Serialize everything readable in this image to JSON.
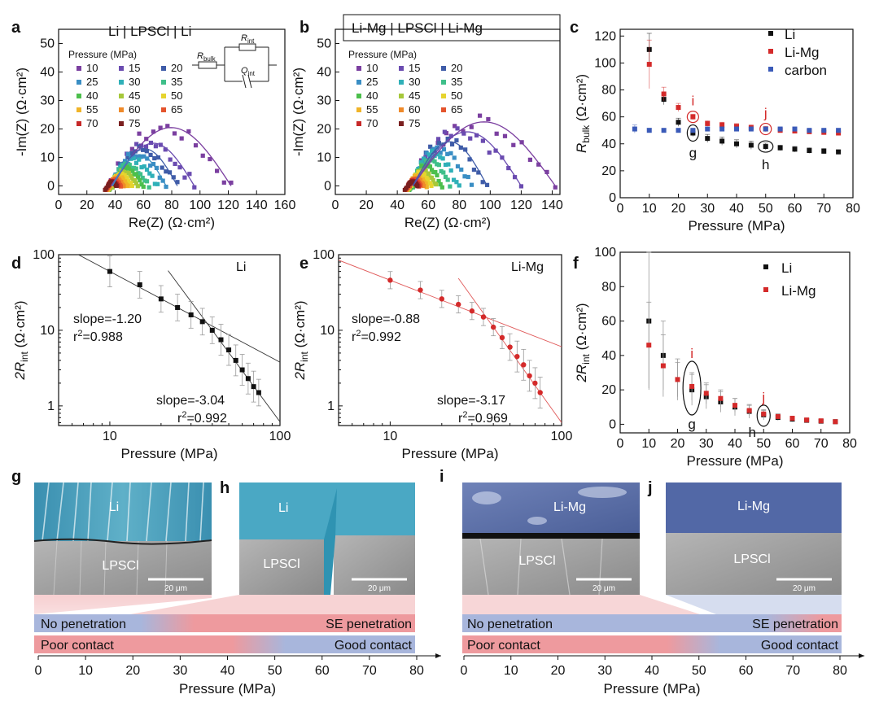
{
  "colors": {
    "li": "#111111",
    "limg": "#d42a2a",
    "carbon": "#3a5ab8",
    "fit_d": "#333333",
    "fit_e": "#e05a5a",
    "err": "#9a9a9a",
    "red_band": "#ee9a9e",
    "blue_band": "#a8b6dc",
    "sem_li": "#3f9fba",
    "sem_limg": "#5268a6",
    "sem_lpscl": "#9a9a9a"
  },
  "axis_titles": {
    "pressure": "Pressure (MPa)",
    "re_z": "Re(Z) (Ω·cm²)",
    "im_z": "-Im(Z) (Ω·cm²)",
    "r_bulk": "R",
    "r_bulk_sub": "bulk",
    "r_int_prefix": "2R",
    "r_int_sub": "int",
    "ohm_unit": " (Ω·cm²)"
  },
  "pressure_legend_title": "Pressure (MPa)",
  "pressure_legend": [
    {
      "label": "10",
      "color": "#7b3fa0"
    },
    {
      "label": "15",
      "color": "#6a4bb0"
    },
    {
      "label": "20",
      "color": "#3f5ca8"
    },
    {
      "label": "25",
      "color": "#3a8ec4"
    },
    {
      "label": "30",
      "color": "#2fb0b8"
    },
    {
      "label": "35",
      "color": "#3fbf8a"
    },
    {
      "label": "40",
      "color": "#4cbf4c"
    },
    {
      "label": "45",
      "color": "#a6c83a"
    },
    {
      "label": "50",
      "color": "#e6d42e"
    },
    {
      "label": "55",
      "color": "#f0b428"
    },
    {
      "label": "60",
      "color": "#ef8a2a"
    },
    {
      "label": "65",
      "color": "#e4532c"
    },
    {
      "label": "70",
      "color": "#c62828"
    },
    {
      "label": "75",
      "color": "#7a1f1f"
    }
  ],
  "circuit": {
    "r_bulk_label": "R",
    "r_bulk_sub": "bulk",
    "r_int_label": "R",
    "r_int_sub": "int",
    "q_int_label": "Q",
    "q_int_sub": "int"
  },
  "panels": {
    "a": {
      "letter": "a",
      "title": "Li | LPSCl | Li"
    },
    "b": {
      "letter": "b",
      "title": "Li-Mg | LPSCl | Li-Mg"
    },
    "c": {
      "letter": "c"
    },
    "d": {
      "letter": "d",
      "label": "Li",
      "annotations": [
        {
          "line1": "slope=-1.20",
          "line2_prefix": "r",
          "line2_sup": "2",
          "line2_rest": "=0.988"
        },
        {
          "line1": "slope=-3.04",
          "line2_prefix": "r",
          "line2_sup": "2",
          "line2_rest": "=0.992"
        }
      ]
    },
    "e": {
      "letter": "e",
      "label": "Li-Mg",
      "annotations": [
        {
          "line1": "slope=-0.88",
          "line2_prefix": "r",
          "line2_sup": "2",
          "line2_rest": "=0.992"
        },
        {
          "line1": "slope=-3.17",
          "line2_prefix": "r",
          "line2_sup": "2",
          "line2_rest": "=0.969"
        }
      ]
    },
    "f": {
      "letter": "f"
    },
    "g": {
      "letter": "g",
      "top_label": "Li",
      "bottom_label": "LPSCl",
      "scale": "20 μm"
    },
    "h": {
      "letter": "h",
      "top_label": "Li",
      "bottom_label": "LPSCl",
      "scale": "20 μm"
    },
    "i": {
      "letter": "i",
      "top_label": "Li-Mg",
      "bottom_label": "LPSCl",
      "scale": "20 μm"
    },
    "j": {
      "letter": "j",
      "top_label": "Li-Mg",
      "bottom_label": "LPSCl",
      "scale": "20 μm"
    }
  },
  "marker_labels": {
    "i": "i",
    "j": "j",
    "g": "g",
    "h": "h"
  },
  "bars": {
    "left": {
      "row1_left": "No penetration",
      "row1_right": "SE penetration",
      "row2_left": "Poor contact",
      "row2_right": "Good contact"
    },
    "right": {
      "row1_left": "No penetration",
      "row1_right": "SE penetration",
      "row2_left": "Poor contact",
      "row2_right": "Good contact"
    }
  },
  "chart_data": [
    {
      "id": "a",
      "type": "scatter",
      "title": "Li | LPSCl | Li",
      "xlabel": "Re(Z) (Ω·cm²)",
      "ylabel": "-Im(Z) (Ω·cm²)",
      "xlim": [
        0,
        160
      ],
      "ylim": [
        -3,
        55
      ],
      "xticks": [
        0,
        20,
        40,
        60,
        80,
        100,
        120,
        140,
        160
      ],
      "yticks": [
        0,
        10,
        20,
        30,
        40,
        50
      ],
      "arcs": [
        {
          "pressure": 10,
          "start": 37,
          "end": 122,
          "peak": 20.5,
          "color": "#7b3fa0"
        },
        {
          "pressure": 15,
          "start": 38,
          "end": 96,
          "peak": 15.0,
          "color": "#6a4bb0"
        },
        {
          "pressure": 20,
          "start": 38,
          "end": 84,
          "peak": 13.0,
          "color": "#3f5ca8"
        },
        {
          "pressure": 25,
          "start": 38,
          "end": 76,
          "peak": 11.0,
          "color": "#3a8ec4"
        },
        {
          "pressure": 30,
          "start": 38,
          "end": 70,
          "peak": 9.0,
          "color": "#2fb0b8"
        },
        {
          "pressure": 35,
          "start": 38,
          "end": 64,
          "peak": 7.5,
          "color": "#3fbf8a"
        },
        {
          "pressure": 40,
          "start": 38,
          "end": 60,
          "peak": 6.0,
          "color": "#4cbf4c"
        },
        {
          "pressure": 45,
          "start": 38,
          "end": 56,
          "peak": 5.0,
          "color": "#a6c83a"
        },
        {
          "pressure": 50,
          "start": 37,
          "end": 52,
          "peak": 4.0,
          "color": "#e6d42e"
        },
        {
          "pressure": 55,
          "start": 37,
          "end": 49,
          "peak": 3.2,
          "color": "#f0b428"
        },
        {
          "pressure": 60,
          "start": 36,
          "end": 46,
          "peak": 2.6,
          "color": "#ef8a2a"
        },
        {
          "pressure": 65,
          "start": 36,
          "end": 44,
          "peak": 2.1,
          "color": "#e4532c"
        },
        {
          "pressure": 70,
          "start": 35,
          "end": 42,
          "peak": 1.7,
          "color": "#c62828"
        },
        {
          "pressure": 75,
          "start": 35,
          "end": 41,
          "peak": 1.4,
          "color": "#7a1f1f"
        }
      ],
      "fit_curves": [
        10,
        15,
        20,
        25
      ]
    },
    {
      "id": "b",
      "type": "scatter",
      "title": "Li-Mg | LPSCl | Li-Mg",
      "xlabel": "Re(Z) (Ω·cm²)",
      "ylabel": "-Im(Z) (Ω·cm²)",
      "xlim": [
        0,
        145
      ],
      "ylim": [
        -3,
        55
      ],
      "xticks": [
        0,
        20,
        40,
        60,
        80,
        100,
        120,
        140
      ],
      "yticks": [
        0,
        10,
        20,
        30,
        40,
        50
      ],
      "arcs": [
        {
          "pressure": 10,
          "start": 50,
          "end": 142,
          "peak": 22.5,
          "color": "#7b3fa0"
        },
        {
          "pressure": 15,
          "start": 50,
          "end": 120,
          "peak": 19.0,
          "color": "#6a4bb0"
        },
        {
          "pressure": 20,
          "start": 50,
          "end": 98,
          "peak": 15.5,
          "color": "#3f5ca8"
        },
        {
          "pressure": 25,
          "start": 50,
          "end": 88,
          "peak": 13.0,
          "color": "#3a8ec4"
        },
        {
          "pressure": 30,
          "start": 50,
          "end": 80,
          "peak": 11.0,
          "color": "#2fb0b8"
        },
        {
          "pressure": 35,
          "start": 50,
          "end": 74,
          "peak": 9.0,
          "color": "#3fbf8a"
        },
        {
          "pressure": 40,
          "start": 50,
          "end": 69,
          "peak": 7.0,
          "color": "#4cbf4c"
        },
        {
          "pressure": 45,
          "start": 49,
          "end": 65,
          "peak": 5.5,
          "color": "#a6c83a"
        },
        {
          "pressure": 50,
          "start": 49,
          "end": 62,
          "peak": 4.5,
          "color": "#e6d42e"
        },
        {
          "pressure": 55,
          "start": 48,
          "end": 59,
          "peak": 3.5,
          "color": "#f0b428"
        },
        {
          "pressure": 60,
          "start": 48,
          "end": 57,
          "peak": 2.8,
          "color": "#ef8a2a"
        },
        {
          "pressure": 65,
          "start": 48,
          "end": 55,
          "peak": 2.2,
          "color": "#e4532c"
        },
        {
          "pressure": 70,
          "start": 47,
          "end": 54,
          "peak": 1.8,
          "color": "#c62828"
        },
        {
          "pressure": 75,
          "start": 47,
          "end": 53,
          "peak": 1.5,
          "color": "#7a1f1f"
        }
      ],
      "fit_curves": [
        10,
        15,
        20
      ]
    },
    {
      "id": "c",
      "type": "scatter",
      "xlabel": "Pressure (MPa)",
      "ylabel": "R_bulk (Ω·cm²)",
      "xlim": [
        0,
        80
      ],
      "ylim": [
        0,
        125
      ],
      "xticks": [
        0,
        10,
        20,
        30,
        40,
        50,
        60,
        70,
        80
      ],
      "yticks": [
        0,
        20,
        40,
        60,
        80,
        100,
        120
      ],
      "series": [
        {
          "name": "Li",
          "color": "#111111",
          "x": [
            10,
            15,
            20,
            25,
            30,
            35,
            40,
            45,
            50,
            55,
            60,
            65,
            70,
            75
          ],
          "y": [
            110,
            73,
            56,
            48,
            44,
            42,
            40,
            39,
            38,
            37,
            36,
            35,
            34.5,
            34
          ],
          "err": [
            12,
            4,
            3,
            2.5,
            3,
            3,
            3,
            3,
            2.5,
            2,
            2,
            2,
            2,
            1.5
          ]
        },
        {
          "name": "Li-Mg",
          "color": "#d42a2a",
          "x": [
            10,
            15,
            20,
            25,
            30,
            35,
            40,
            45,
            50,
            55,
            60,
            65,
            70,
            75
          ],
          "y": [
            99,
            77,
            67,
            60,
            55,
            54,
            53,
            52,
            51,
            50,
            49.5,
            49,
            48.5,
            48
          ],
          "err": [
            18,
            5,
            3,
            2,
            2,
            2,
            2,
            2,
            2,
            1.5,
            1.5,
            1.5,
            1.5,
            1.5
          ]
        },
        {
          "name": "carbon",
          "color": "#3a5ab8",
          "x": [
            5,
            10,
            15,
            20,
            25,
            30,
            35,
            40,
            45,
            50,
            55,
            60,
            65,
            70,
            75
          ],
          "y": [
            51,
            50,
            50,
            50,
            50,
            51,
            51,
            51,
            51,
            51,
            51,
            51,
            50,
            50,
            50
          ],
          "err": [
            3,
            1.5,
            1,
            1,
            1,
            1,
            1,
            1,
            1,
            1,
            1,
            1,
            1,
            1,
            1
          ]
        }
      ],
      "legend": "top-right",
      "markers": {
        "i": [
          25,
          60
        ],
        "j": [
          50,
          51
        ],
        "g": [
          25,
          48
        ],
        "h": [
          50,
          38
        ]
      }
    },
    {
      "id": "d",
      "type": "scatter",
      "scale": "log-log",
      "xlabel": "Pressure (MPa)",
      "ylabel": "2R_int (Ω·cm²)",
      "xlim": [
        5,
        100
      ],
      "ylim": [
        0.55,
        100
      ],
      "xticks": [
        10,
        100
      ],
      "yticks": [
        1,
        10,
        100
      ],
      "series": [
        {
          "name": "Li",
          "color": "#111111",
          "x": [
            10,
            15,
            20,
            25,
            30,
            35,
            40,
            45,
            50,
            55,
            60,
            65,
            70,
            75
          ],
          "y": [
            60,
            40,
            26,
            20,
            16,
            13,
            10,
            7.5,
            5.5,
            4,
            3,
            2.3,
            1.8,
            1.5
          ],
          "err_factor": [
            1.6,
            1.5,
            1.5,
            1.5,
            1.5,
            1.5,
            1.5,
            1.6,
            1.6,
            1.6,
            1.6,
            1.6,
            1.6,
            1.5
          ]
        }
      ],
      "fits": [
        {
          "slope": -1.2,
          "r2": 0.988,
          "x_range": [
            5,
            100
          ],
          "anchor": [
            10,
            60
          ]
        },
        {
          "slope": -3.04,
          "r2": 0.992,
          "x_range": [
            22,
            100
          ],
          "anchor": [
            40,
            10
          ]
        }
      ]
    },
    {
      "id": "e",
      "type": "scatter",
      "scale": "log-log",
      "xlabel": "Pressure (MPa)",
      "ylabel": "2R_int (Ω·cm²)",
      "xlim": [
        5,
        100
      ],
      "ylim": [
        0.55,
        100
      ],
      "xticks": [
        10,
        100
      ],
      "yticks": [
        1,
        10,
        100
      ],
      "series": [
        {
          "name": "Li-Mg",
          "color": "#d42a2a",
          "x": [
            10,
            15,
            20,
            25,
            30,
            35,
            40,
            45,
            50,
            55,
            60,
            65,
            70,
            75
          ],
          "y": [
            46,
            34,
            26,
            22,
            18,
            15,
            11,
            8,
            6,
            4.5,
            3.5,
            2.5,
            2,
            1.5
          ],
          "err_factor": [
            1.3,
            1.3,
            1.3,
            1.3,
            1.3,
            1.3,
            1.3,
            1.4,
            1.5,
            1.6,
            1.6,
            1.6,
            1.6,
            1.6
          ]
        }
      ],
      "fits": [
        {
          "slope": -0.88,
          "r2": 0.992,
          "x_range": [
            5,
            100
          ],
          "anchor": [
            10,
            46
          ]
        },
        {
          "slope": -3.17,
          "r2": 0.969,
          "x_range": [
            25,
            100
          ],
          "anchor": [
            40,
            11
          ]
        }
      ]
    },
    {
      "id": "f",
      "type": "scatter",
      "xlabel": "Pressure (MPa)",
      "ylabel": "2R_int (Ω·cm²)",
      "xlim": [
        0,
        80
      ],
      "ylim": [
        -5,
        100
      ],
      "xticks": [
        0,
        10,
        20,
        30,
        40,
        50,
        60,
        70,
        80
      ],
      "yticks": [
        0,
        20,
        40,
        60,
        80,
        100
      ],
      "series": [
        {
          "name": "Li",
          "color": "#111111",
          "x": [
            10,
            15,
            20,
            25,
            30,
            35,
            40,
            45,
            50,
            55,
            60,
            65,
            70,
            75
          ],
          "y": [
            60,
            40,
            26,
            20,
            16,
            13,
            10,
            7.5,
            5.5,
            4,
            3,
            2.3,
            1.8,
            1.5
          ],
          "err": [
            40,
            20,
            12,
            9,
            7,
            6,
            5,
            4,
            3,
            2,
            1.5,
            1,
            1,
            1
          ]
        },
        {
          "name": "Li-Mg",
          "color": "#d42a2a",
          "x": [
            10,
            15,
            20,
            25,
            30,
            35,
            40,
            45,
            50,
            55,
            60,
            65,
            70,
            75
          ],
          "y": [
            46,
            34,
            26,
            22,
            18,
            15,
            11,
            8,
            6,
            4.5,
            3.5,
            2.5,
            2,
            1.5
          ],
          "err": [
            25,
            18,
            10,
            8,
            6,
            5,
            4,
            3,
            2,
            1.5,
            1,
            1,
            1,
            0.8
          ]
        }
      ],
      "legend": "top-right",
      "markers": {
        "i": [
          25,
          21
        ],
        "j": [
          50,
          5
        ],
        "g": [
          25,
          21
        ],
        "h": [
          50,
          5
        ]
      }
    },
    {
      "id": "bar_left",
      "type": "bar",
      "xlabel": "Pressure (MPa)",
      "xlim": [
        0,
        80
      ],
      "xticks": [
        0,
        10,
        20,
        30,
        40,
        50,
        60,
        70,
        80
      ],
      "transition_row1": 30,
      "transition_row2": 45
    },
    {
      "id": "bar_right",
      "type": "bar",
      "xlabel": "Pressure (MPa)",
      "xlim": [
        0,
        80
      ],
      "xticks": [
        0,
        10,
        20,
        30,
        40,
        50,
        60,
        70,
        80
      ],
      "transition_row1": 75,
      "transition_row2": 50
    }
  ]
}
